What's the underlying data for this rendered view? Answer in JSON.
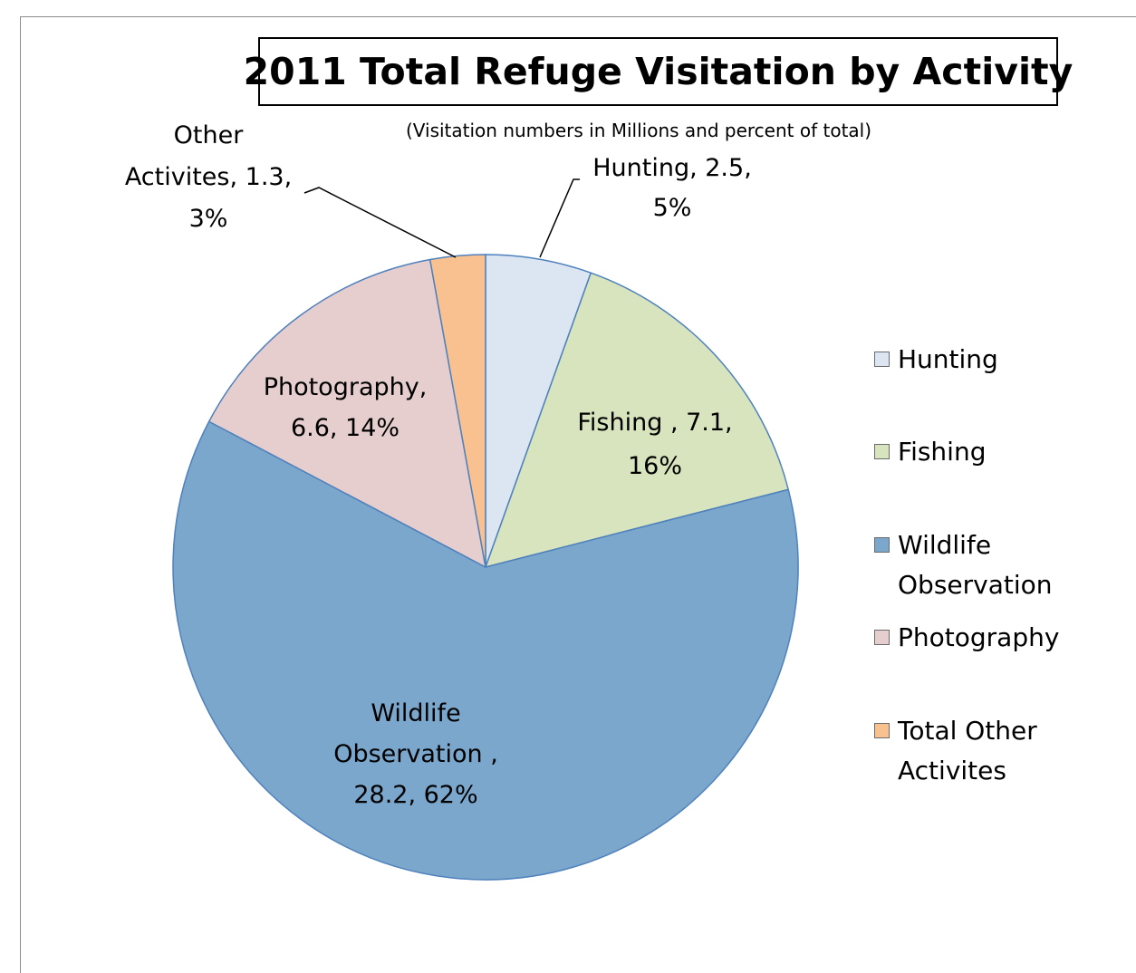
{
  "title": "2011 Total Refuge Visitation by Activity",
  "subtitle": "(Visitation numbers in Millions and percent of total)",
  "colors": {
    "hunting": "#dce6f2",
    "fishing": "#d7e4bd",
    "wildlife": "#7ba7cc",
    "photography": "#e6cece",
    "other": "#f9c090",
    "slice_border": "#4f81bd"
  },
  "chart_data": {
    "type": "pie",
    "title": "2011 Total Refuge Visitation by Activity",
    "subtitle": "(Visitation numbers in Millions and percent of total)",
    "units": "Millions",
    "slices": [
      {
        "key": "hunting",
        "value": 2.5,
        "percent": 5,
        "label_lines": [
          "Hunting, 2.5,",
          "5%"
        ],
        "legend": "Hunting"
      },
      {
        "key": "fishing",
        "value": 7.1,
        "percent": 16,
        "label_lines": [
          "Fishing , 7.1,",
          "16%"
        ],
        "legend": "Fishing"
      },
      {
        "key": "wildlife",
        "value": 28.2,
        "percent": 62,
        "label_lines": [
          "Wildlife",
          "Observation ,",
          "28.2, 62%"
        ],
        "legend": "Wildlife Observation"
      },
      {
        "key": "photography",
        "value": 6.6,
        "percent": 14,
        "label_lines": [
          "Photography,",
          "6.6, 14%"
        ],
        "legend": "Photography"
      },
      {
        "key": "other",
        "value": 1.3,
        "percent": 3,
        "label_lines": [
          "Other",
          "Activites, 1.3,",
          "3%"
        ],
        "legend": "Total Other Activites"
      }
    ],
    "legend_position": "right"
  }
}
